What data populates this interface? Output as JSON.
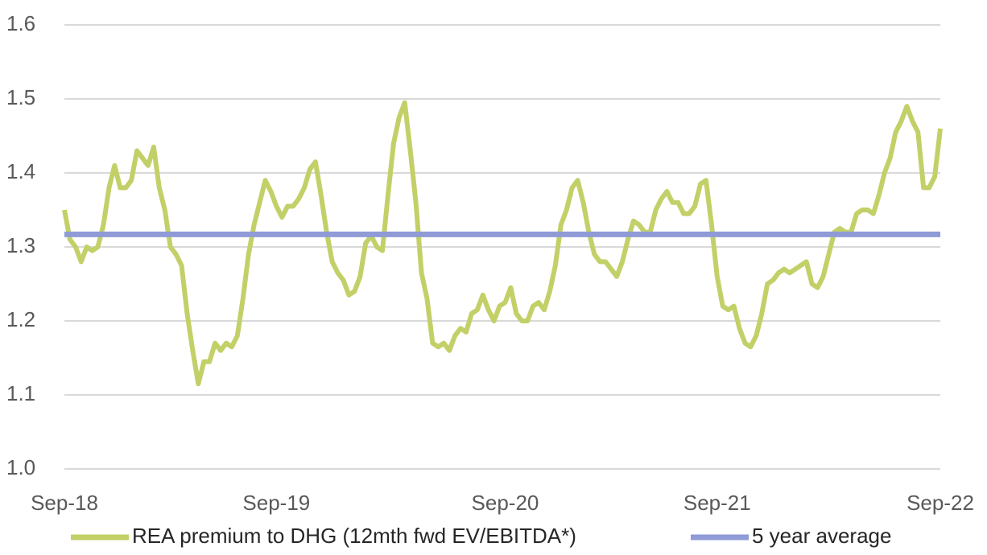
{
  "chart_data": {
    "type": "line",
    "categories": [
      "Sep-18",
      null,
      null,
      null,
      null,
      null,
      null,
      null,
      null,
      null,
      null,
      null,
      null,
      null,
      null,
      null,
      null,
      null,
      null,
      null,
      null,
      null,
      null,
      null,
      null,
      null,
      null,
      null,
      null,
      null,
      null,
      null,
      null,
      null,
      null,
      null,
      null,
      null,
      "Sep-19",
      null,
      null,
      null,
      null,
      null,
      null,
      null,
      null,
      null,
      null,
      null,
      null,
      null,
      null,
      null,
      null,
      null,
      null,
      null,
      null,
      null,
      null,
      null,
      null,
      null,
      null,
      null,
      null,
      null,
      null,
      null,
      null,
      null,
      null,
      null,
      null,
      null,
      null,
      null,
      null,
      "Sep-20",
      null,
      null,
      null,
      null,
      null,
      null,
      null,
      null,
      null,
      null,
      null,
      null,
      null,
      null,
      null,
      null,
      null,
      null,
      null,
      null,
      null,
      null,
      null,
      null,
      null,
      null,
      null,
      null,
      null,
      null,
      null,
      null,
      null,
      null,
      null,
      null,
      null,
      "Sep-21",
      null,
      null,
      null,
      null,
      null,
      null,
      null,
      null,
      null,
      null,
      null,
      null,
      null,
      null,
      null,
      null,
      null,
      null,
      null,
      null,
      null,
      null,
      null,
      null,
      null,
      null,
      null,
      null,
      null,
      null,
      null,
      null,
      null,
      null,
      null,
      null,
      null,
      null,
      null,
      "Sep-22"
    ],
    "series": [
      {
        "name": "REA premium to DHG (12mth fwd EV/EBITDA*)",
        "color": "#c3d068",
        "values": [
          1.35,
          1.31,
          1.3,
          1.28,
          1.3,
          1.295,
          1.3,
          1.33,
          1.38,
          1.41,
          1.38,
          1.38,
          1.39,
          1.43,
          1.42,
          1.41,
          1.435,
          1.38,
          1.35,
          1.3,
          1.29,
          1.275,
          1.21,
          1.16,
          1.115,
          1.145,
          1.145,
          1.17,
          1.16,
          1.17,
          1.165,
          1.18,
          1.23,
          1.29,
          1.33,
          1.36,
          1.39,
          1.375,
          1.355,
          1.34,
          1.355,
          1.355,
          1.365,
          1.38,
          1.405,
          1.415,
          1.37,
          1.32,
          1.28,
          1.265,
          1.255,
          1.235,
          1.24,
          1.26,
          1.305,
          1.315,
          1.3,
          1.295,
          1.37,
          1.44,
          1.475,
          1.495,
          1.43,
          1.36,
          1.265,
          1.23,
          1.17,
          1.165,
          1.17,
          1.16,
          1.18,
          1.19,
          1.185,
          1.21,
          1.215,
          1.235,
          1.215,
          1.2,
          1.22,
          1.225,
          1.245,
          1.21,
          1.2,
          1.2,
          1.22,
          1.225,
          1.215,
          1.24,
          1.275,
          1.33,
          1.35,
          1.38,
          1.39,
          1.36,
          1.32,
          1.29,
          1.28,
          1.28,
          1.27,
          1.26,
          1.28,
          1.31,
          1.335,
          1.33,
          1.32,
          1.32,
          1.35,
          1.365,
          1.375,
          1.36,
          1.36,
          1.345,
          1.345,
          1.355,
          1.385,
          1.39,
          1.33,
          1.26,
          1.22,
          1.215,
          1.22,
          1.19,
          1.17,
          1.165,
          1.18,
          1.21,
          1.25,
          1.255,
          1.265,
          1.27,
          1.265,
          1.27,
          1.275,
          1.28,
          1.25,
          1.245,
          1.26,
          1.29,
          1.32,
          1.325,
          1.32,
          1.32,
          1.345,
          1.35,
          1.35,
          1.345,
          1.37,
          1.4,
          1.42,
          1.455,
          1.47,
          1.49,
          1.47,
          1.455,
          1.38,
          1.38,
          1.395,
          1.46
        ]
      },
      {
        "name": "5 year average",
        "color": "#8f9bd6",
        "values": [
          1.317,
          1.317,
          1.317,
          1.317,
          1.317,
          1.317,
          1.317,
          1.317,
          1.317,
          1.317,
          1.317,
          1.317,
          1.317,
          1.317,
          1.317,
          1.317,
          1.317,
          1.317,
          1.317,
          1.317,
          1.317,
          1.317,
          1.317,
          1.317,
          1.317,
          1.317,
          1.317,
          1.317,
          1.317,
          1.317,
          1.317,
          1.317,
          1.317,
          1.317,
          1.317,
          1.317,
          1.317,
          1.317,
          1.317,
          1.317,
          1.317,
          1.317,
          1.317,
          1.317,
          1.317,
          1.317,
          1.317,
          1.317,
          1.317,
          1.317,
          1.317,
          1.317,
          1.317,
          1.317,
          1.317,
          1.317,
          1.317,
          1.317,
          1.317,
          1.317,
          1.317,
          1.317,
          1.317,
          1.317,
          1.317,
          1.317,
          1.317,
          1.317,
          1.317,
          1.317,
          1.317,
          1.317,
          1.317,
          1.317,
          1.317,
          1.317,
          1.317,
          1.317,
          1.317,
          1.317,
          1.317,
          1.317,
          1.317,
          1.317,
          1.317,
          1.317,
          1.317,
          1.317,
          1.317,
          1.317,
          1.317,
          1.317,
          1.317,
          1.317,
          1.317,
          1.317,
          1.317,
          1.317,
          1.317,
          1.317,
          1.317,
          1.317,
          1.317,
          1.317,
          1.317,
          1.317,
          1.317,
          1.317,
          1.317,
          1.317,
          1.317,
          1.317,
          1.317,
          1.317,
          1.317,
          1.317,
          1.317,
          1.317,
          1.317,
          1.317,
          1.317,
          1.317,
          1.317,
          1.317,
          1.317,
          1.317,
          1.317,
          1.317,
          1.317,
          1.317,
          1.317,
          1.317,
          1.317,
          1.317,
          1.317,
          1.317,
          1.317,
          1.317,
          1.317,
          1.317,
          1.317,
          1.317,
          1.317,
          1.317,
          1.317,
          1.317,
          1.317,
          1.317,
          1.317,
          1.317,
          1.317,
          1.317,
          1.317,
          1.317,
          1.317,
          1.317,
          1.317,
          1.317
        ]
      }
    ],
    "ylim": [
      1.0,
      1.6
    ],
    "yticks": [
      {
        "value": 1,
        "label": "1.0"
      },
      1.1,
      1.2,
      1.3,
      1.4,
      1.5,
      1.6
    ],
    "grid": true
  }
}
